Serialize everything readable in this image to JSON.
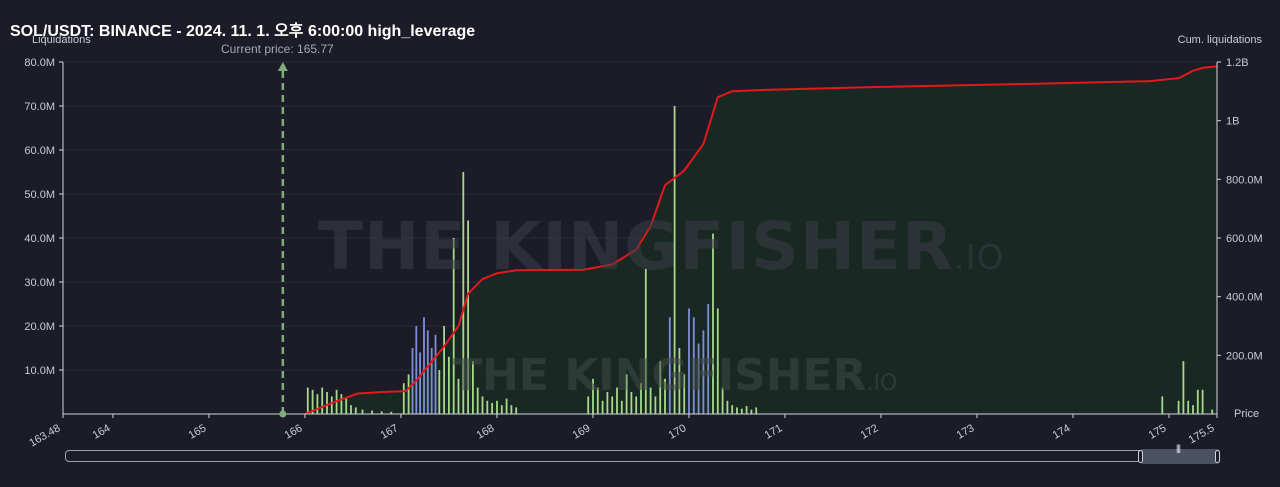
{
  "header": {
    "title": "SOL/USDT: BINANCE - 2024. 11. 1. 오후 6:00:00 high_leverage"
  },
  "watermark": {
    "main": "THE KINGFISHER",
    "suffix": ".IO"
  },
  "colors": {
    "background": "#1b1c27",
    "cum_line": "#e01a1a",
    "cum_fill": "#1a2a22",
    "bar_long": "#a6d98a",
    "bar_short": "#7f8fd6",
    "current_price": "#7fae7a",
    "grid": "#2a2c38"
  },
  "chart_data": {
    "type": "bar",
    "left_axis_label": "Liquidations",
    "right_axis_label": "Cum. liquidations",
    "x_axis_label": "Price",
    "current_price_label": "Current price: 165.77",
    "current_price": 165.77,
    "xlim": [
      163.48,
      175.5
    ],
    "ylim_left": [
      0,
      80000000
    ],
    "ylim_right": [
      0,
      1200000000
    ],
    "x_ticks": [
      "163.48",
      "164",
      "165",
      "166",
      "167",
      "168",
      "169",
      "170",
      "171",
      "172",
      "173",
      "174",
      "175",
      "175.5"
    ],
    "y_ticks_left": [
      "10.0M",
      "20.0M",
      "30.0M",
      "40.0M",
      "50.0M",
      "60.0M",
      "70.0M",
      "80.0M"
    ],
    "y_ticks_right": [
      "200.0M",
      "400.0M",
      "600.0M",
      "800.0M",
      "1B",
      "1.2B"
    ],
    "bars": [
      {
        "x": 166.03,
        "y": 6000000,
        "c": "long"
      },
      {
        "x": 166.08,
        "y": 5500000,
        "c": "long"
      },
      {
        "x": 166.13,
        "y": 4500000,
        "c": "long"
      },
      {
        "x": 166.18,
        "y": 6000000,
        "c": "long"
      },
      {
        "x": 166.23,
        "y": 5000000,
        "c": "long"
      },
      {
        "x": 166.28,
        "y": 4000000,
        "c": "long"
      },
      {
        "x": 166.33,
        "y": 5500000,
        "c": "long"
      },
      {
        "x": 166.38,
        "y": 4500000,
        "c": "long"
      },
      {
        "x": 166.43,
        "y": 3500000,
        "c": "long"
      },
      {
        "x": 166.48,
        "y": 2000000,
        "c": "long"
      },
      {
        "x": 166.53,
        "y": 1500000,
        "c": "long"
      },
      {
        "x": 166.6,
        "y": 1000000,
        "c": "long"
      },
      {
        "x": 166.7,
        "y": 800000,
        "c": "long"
      },
      {
        "x": 166.8,
        "y": 600000,
        "c": "long"
      },
      {
        "x": 166.9,
        "y": 500000,
        "c": "long"
      },
      {
        "x": 167.03,
        "y": 7000000,
        "c": "long"
      },
      {
        "x": 167.08,
        "y": 9000000,
        "c": "long"
      },
      {
        "x": 167.12,
        "y": 15000000,
        "c": "short"
      },
      {
        "x": 167.16,
        "y": 20000000,
        "c": "short"
      },
      {
        "x": 167.2,
        "y": 14000000,
        "c": "short"
      },
      {
        "x": 167.24,
        "y": 22000000,
        "c": "short"
      },
      {
        "x": 167.28,
        "y": 19000000,
        "c": "short"
      },
      {
        "x": 167.32,
        "y": 15000000,
        "c": "short"
      },
      {
        "x": 167.36,
        "y": 18000000,
        "c": "short"
      },
      {
        "x": 167.4,
        "y": 10000000,
        "c": "long"
      },
      {
        "x": 167.45,
        "y": 20000000,
        "c": "long"
      },
      {
        "x": 167.5,
        "y": 13000000,
        "c": "long"
      },
      {
        "x": 167.55,
        "y": 40000000,
        "c": "long"
      },
      {
        "x": 167.6,
        "y": 8000000,
        "c": "long"
      },
      {
        "x": 167.65,
        "y": 55000000,
        "c": "long"
      },
      {
        "x": 167.7,
        "y": 44000000,
        "c": "long"
      },
      {
        "x": 167.75,
        "y": 12000000,
        "c": "long"
      },
      {
        "x": 167.8,
        "y": 6000000,
        "c": "long"
      },
      {
        "x": 167.85,
        "y": 4000000,
        "c": "long"
      },
      {
        "x": 167.9,
        "y": 3000000,
        "c": "long"
      },
      {
        "x": 167.95,
        "y": 2500000,
        "c": "long"
      },
      {
        "x": 168.0,
        "y": 3000000,
        "c": "long"
      },
      {
        "x": 168.05,
        "y": 2000000,
        "c": "long"
      },
      {
        "x": 168.1,
        "y": 3500000,
        "c": "long"
      },
      {
        "x": 168.15,
        "y": 2000000,
        "c": "long"
      },
      {
        "x": 168.2,
        "y": 1500000,
        "c": "long"
      },
      {
        "x": 168.95,
        "y": 4000000,
        "c": "long"
      },
      {
        "x": 169.0,
        "y": 8000000,
        "c": "long"
      },
      {
        "x": 169.05,
        "y": 6000000,
        "c": "long"
      },
      {
        "x": 169.1,
        "y": 3000000,
        "c": "long"
      },
      {
        "x": 169.15,
        "y": 5000000,
        "c": "long"
      },
      {
        "x": 169.2,
        "y": 4000000,
        "c": "long"
      },
      {
        "x": 169.25,
        "y": 6000000,
        "c": "long"
      },
      {
        "x": 169.3,
        "y": 3000000,
        "c": "long"
      },
      {
        "x": 169.35,
        "y": 9000000,
        "c": "long"
      },
      {
        "x": 169.4,
        "y": 5000000,
        "c": "long"
      },
      {
        "x": 169.45,
        "y": 4000000,
        "c": "long"
      },
      {
        "x": 169.5,
        "y": 7000000,
        "c": "long"
      },
      {
        "x": 169.55,
        "y": 33000000,
        "c": "long"
      },
      {
        "x": 169.6,
        "y": 6000000,
        "c": "long"
      },
      {
        "x": 169.65,
        "y": 4000000,
        "c": "long"
      },
      {
        "x": 169.7,
        "y": 12000000,
        "c": "long"
      },
      {
        "x": 169.75,
        "y": 8000000,
        "c": "long"
      },
      {
        "x": 169.8,
        "y": 22000000,
        "c": "short"
      },
      {
        "x": 169.85,
        "y": 70000000,
        "c": "long"
      },
      {
        "x": 169.9,
        "y": 15000000,
        "c": "long"
      },
      {
        "x": 169.95,
        "y": 9000000,
        "c": "long"
      },
      {
        "x": 170.0,
        "y": 24000000,
        "c": "short"
      },
      {
        "x": 170.05,
        "y": 22000000,
        "c": "short"
      },
      {
        "x": 170.1,
        "y": 16000000,
        "c": "short"
      },
      {
        "x": 170.15,
        "y": 19000000,
        "c": "short"
      },
      {
        "x": 170.2,
        "y": 25000000,
        "c": "short"
      },
      {
        "x": 170.25,
        "y": 41000000,
        "c": "long"
      },
      {
        "x": 170.3,
        "y": 24000000,
        "c": "long"
      },
      {
        "x": 170.35,
        "y": 6000000,
        "c": "long"
      },
      {
        "x": 170.4,
        "y": 3000000,
        "c": "long"
      },
      {
        "x": 170.45,
        "y": 2000000,
        "c": "long"
      },
      {
        "x": 170.5,
        "y": 1500000,
        "c": "long"
      },
      {
        "x": 170.55,
        "y": 1200000,
        "c": "long"
      },
      {
        "x": 170.6,
        "y": 1800000,
        "c": "long"
      },
      {
        "x": 170.65,
        "y": 1000000,
        "c": "long"
      },
      {
        "x": 170.7,
        "y": 1500000,
        "c": "long"
      },
      {
        "x": 174.93,
        "y": 4000000,
        "c": "long"
      },
      {
        "x": 175.1,
        "y": 3000000,
        "c": "long"
      },
      {
        "x": 175.15,
        "y": 12000000,
        "c": "long"
      },
      {
        "x": 175.2,
        "y": 3000000,
        "c": "long"
      },
      {
        "x": 175.25,
        "y": 2000000,
        "c": "long"
      },
      {
        "x": 175.3,
        "y": 5500000,
        "c": "long"
      },
      {
        "x": 175.35,
        "y": 5500000,
        "c": "long"
      },
      {
        "x": 175.45,
        "y": 1000000,
        "c": "long"
      }
    ],
    "cumulative": [
      [
        166.0,
        0
      ],
      [
        166.3,
        40000000
      ],
      [
        166.55,
        70000000
      ],
      [
        166.8,
        75000000
      ],
      [
        167.05,
        78000000
      ],
      [
        167.15,
        110000000
      ],
      [
        167.3,
        170000000
      ],
      [
        167.45,
        230000000
      ],
      [
        167.6,
        300000000
      ],
      [
        167.7,
        410000000
      ],
      [
        167.85,
        460000000
      ],
      [
        168.0,
        480000000
      ],
      [
        168.2,
        490000000
      ],
      [
        168.9,
        492000000
      ],
      [
        169.2,
        510000000
      ],
      [
        169.45,
        560000000
      ],
      [
        169.6,
        640000000
      ],
      [
        169.75,
        780000000
      ],
      [
        169.95,
        830000000
      ],
      [
        170.15,
        920000000
      ],
      [
        170.3,
        1080000000
      ],
      [
        170.45,
        1100000000
      ],
      [
        170.8,
        1105000000
      ],
      [
        172.0,
        1115000000
      ],
      [
        173.5,
        1125000000
      ],
      [
        174.8,
        1135000000
      ],
      [
        175.1,
        1145000000
      ],
      [
        175.25,
        1170000000
      ],
      [
        175.35,
        1180000000
      ],
      [
        175.5,
        1185000000
      ]
    ]
  }
}
